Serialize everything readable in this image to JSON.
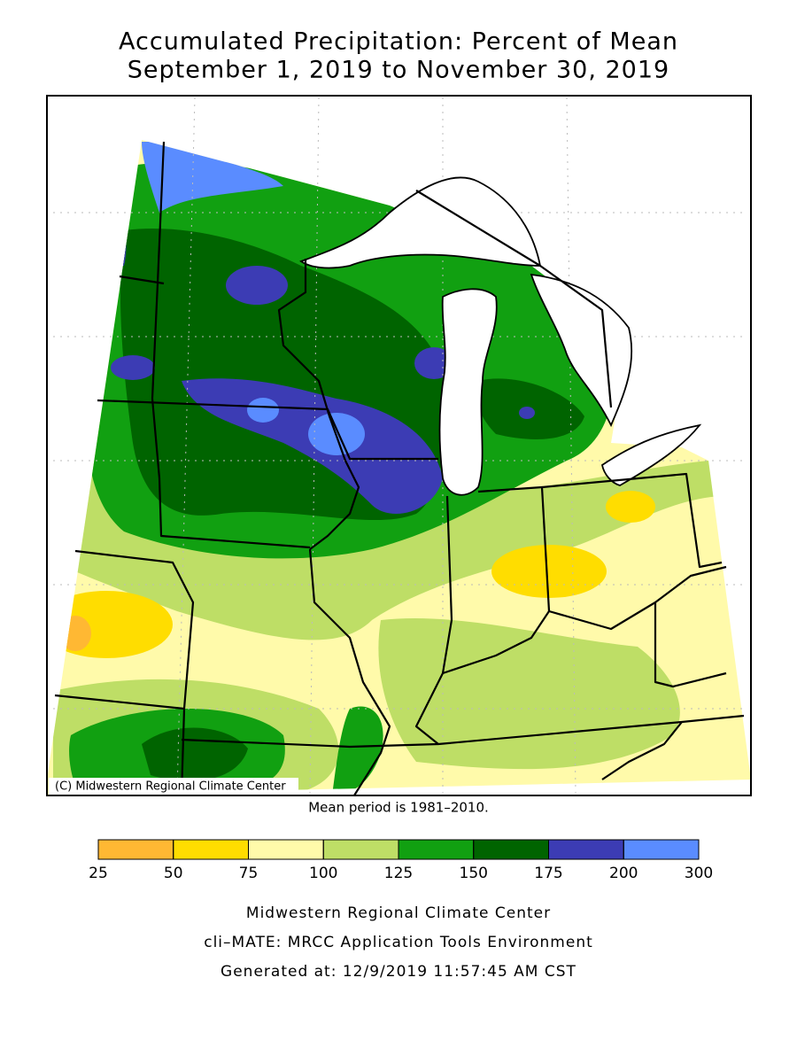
{
  "title": [
    "Accumulated Precipitation: Percent of Mean",
    "September 1, 2019 to November 30, 2019"
  ],
  "credit": "(C) Midwestern Regional Climate Center",
  "note": "Mean period is 1981–2010.",
  "legend": {
    "ticks": [
      25,
      50,
      75,
      100,
      125,
      150,
      175,
      200,
      300
    ],
    "colors": [
      "#ffb833",
      "#ffdd00",
      "#fffaaa",
      "#bede66",
      "#11a011",
      "#006400",
      "#3c3cb4",
      "#5a8cff"
    ]
  },
  "footer": [
    "Midwestern Regional Climate Center",
    "cli–MATE: MRCC Application Tools Environment",
    "Generated at: 12/9/2019 11:57:45 AM CST"
  ]
}
